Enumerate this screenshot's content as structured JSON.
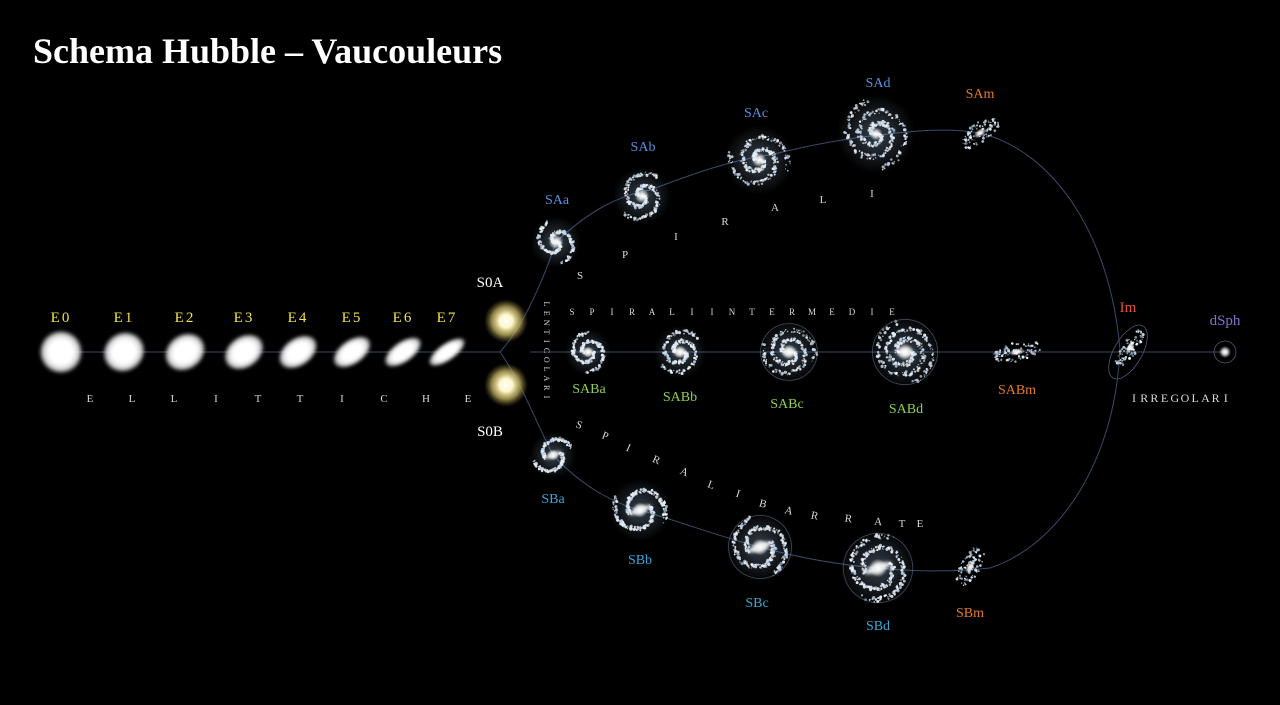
{
  "title": "Schema Hubble – Vaucouleurs",
  "colors": {
    "background": "#000000",
    "elliptical_label": "#f0e24a",
    "spiral_label": "#5b8fe0",
    "intermediate_label": "#8fcf4e",
    "barred_label": "#3aa6d8",
    "magellanic_label": "#e27a2a",
    "irregular_label": "#e0503a",
    "dwarf_label": "#8a6fd0",
    "lenticular_label": "#ffffff",
    "group_label": "#d9d9d9",
    "track_line": "#3a4a6a"
  },
  "elliptical": {
    "types": [
      "E0",
      "E1",
      "E2",
      "E3",
      "E4",
      "E5",
      "E6",
      "E7"
    ],
    "group_label": "ELLITTICHE"
  },
  "lenticular": {
    "upper": "S0A",
    "lower": "S0B",
    "group_label": "LENTICOLARI"
  },
  "spiral": {
    "types": [
      "SAa",
      "SAb",
      "SAc",
      "SAd",
      "SAm"
    ],
    "group_label": "SPIRALI"
  },
  "intermediate": {
    "types": [
      "SABa",
      "SABb",
      "SABc",
      "SABd",
      "SABm"
    ],
    "group_label": "SPIRALI INTERMEDIE"
  },
  "barred": {
    "types": [
      "SBa",
      "SBb",
      "SBc",
      "SBd",
      "SBm"
    ],
    "group_label": "SPIRALI BARRATE"
  },
  "irregular": {
    "types": [
      "Im",
      "dSph"
    ],
    "group_label": "IRREGOLARI"
  }
}
